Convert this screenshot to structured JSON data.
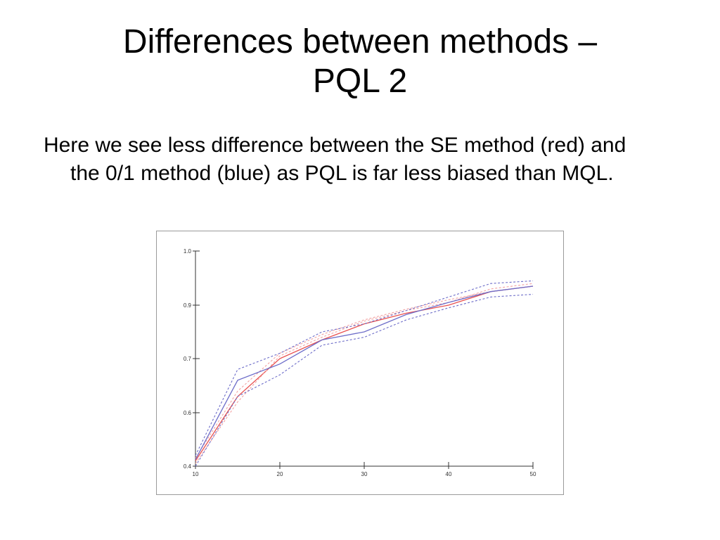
{
  "slide": {
    "title_line1": "Differences between methods –",
    "title_line2": "PQL 2",
    "body": "Here we see less difference between  the SE method (red) and the 0/1 method (blue) as PQL is far less biased than MQL."
  },
  "chart_data": {
    "type": "line",
    "title": "",
    "xlabel": "",
    "ylabel": "",
    "xlim": [
      10,
      50
    ],
    "x_ticks": [
      10,
      20,
      30,
      40,
      50
    ],
    "x_tick_labels": [
      "10",
      "20",
      "30",
      "40",
      "50"
    ],
    "y_ticks": [
      0.4,
      0.6,
      0.7,
      0.9,
      1.0
    ],
    "y_tick_labels": [
      "0.4",
      "0.6",
      "0.7",
      "0.9",
      "1.0"
    ],
    "grid": false,
    "legend": "none",
    "x": [
      10,
      15,
      20,
      25,
      30,
      35,
      40,
      45,
      50
    ],
    "series": [
      {
        "color": "#e8504f",
        "style": "solid",
        "values": [
          0.42,
          0.63,
          0.7,
          0.77,
          0.83,
          0.87,
          0.9,
          0.925,
          0.935
        ]
      },
      {
        "color": "#f2a2a2",
        "style": "dotted",
        "values": [
          0.41,
          0.62,
          0.71,
          0.78,
          0.84,
          0.88,
          0.905,
          0.93,
          0.94
        ]
      },
      {
        "color": "#f2a2a2",
        "style": "dotted",
        "values": [
          0.43,
          0.64,
          0.72,
          0.79,
          0.845,
          0.885,
          0.91,
          0.925,
          0.935
        ]
      },
      {
        "color": "#6d6dc9",
        "style": "solid",
        "values": [
          0.425,
          0.66,
          0.69,
          0.77,
          0.8,
          0.865,
          0.905,
          0.925,
          0.935
        ]
      },
      {
        "color": "#6d6dc9",
        "style": "dotted",
        "values": [
          0.44,
          0.68,
          0.72,
          0.8,
          0.83,
          0.88,
          0.915,
          0.94,
          0.945
        ]
      },
      {
        "color": "#6d6dc9",
        "style": "dotted",
        "values": [
          0.4,
          0.63,
          0.67,
          0.75,
          0.78,
          0.845,
          0.89,
          0.915,
          0.92
        ]
      }
    ]
  }
}
